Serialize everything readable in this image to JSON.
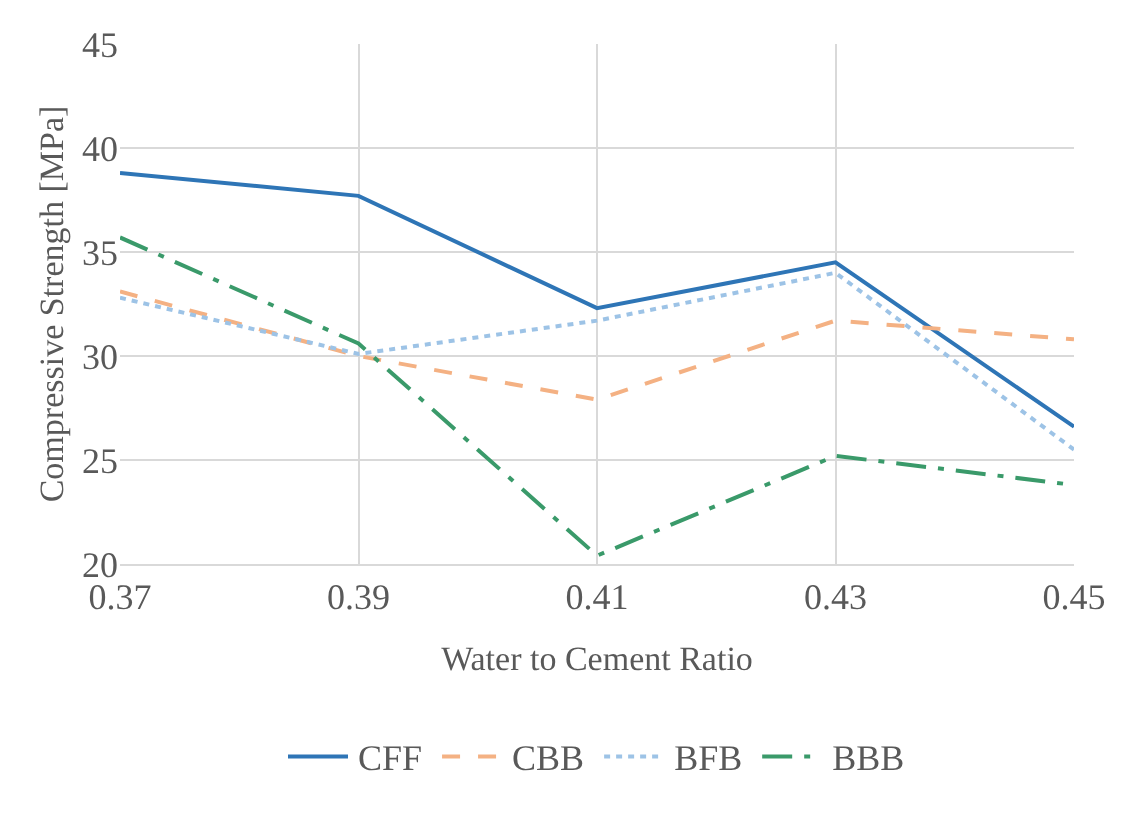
{
  "chart_data": {
    "type": "line",
    "xlabel": "Water to Cement Ratio",
    "ylabel": "Compressive Strength [MPa]",
    "x": [
      0.37,
      0.39,
      0.41,
      0.43,
      0.45
    ],
    "xlim": [
      0.37,
      0.45
    ],
    "xticks": [
      {
        "value": 0.37,
        "label": "0.37"
      },
      {
        "value": 0.39,
        "label": "0.39"
      },
      {
        "value": 0.41,
        "label": "0.41"
      },
      {
        "value": 0.43,
        "label": "0.43"
      },
      {
        "value": 0.45,
        "label": "0.45"
      }
    ],
    "ylim": [
      20,
      45
    ],
    "yticks": [
      20,
      25,
      30,
      35,
      40,
      45
    ],
    "grid": true,
    "legend": "bottom",
    "marker": "none",
    "series": [
      {
        "name": "CFF",
        "color": "#2e75b6",
        "line_style": "solid",
        "values": [
          38.8,
          37.7,
          32.3,
          34.5,
          26.6
        ]
      },
      {
        "name": "CBB",
        "color": "#f4b183",
        "line_style": "dashed",
        "values": [
          33.1,
          30.0,
          27.9,
          31.7,
          30.8
        ]
      },
      {
        "name": "BFB",
        "color": "#9dc3e6",
        "line_style": "dotted",
        "values": [
          32.8,
          30.1,
          31.7,
          34.0,
          25.5
        ]
      },
      {
        "name": "BBB",
        "color": "#3a9a6a",
        "line_style": "dashdot",
        "values": [
          35.7,
          30.6,
          20.4,
          25.2,
          23.8
        ]
      }
    ]
  }
}
